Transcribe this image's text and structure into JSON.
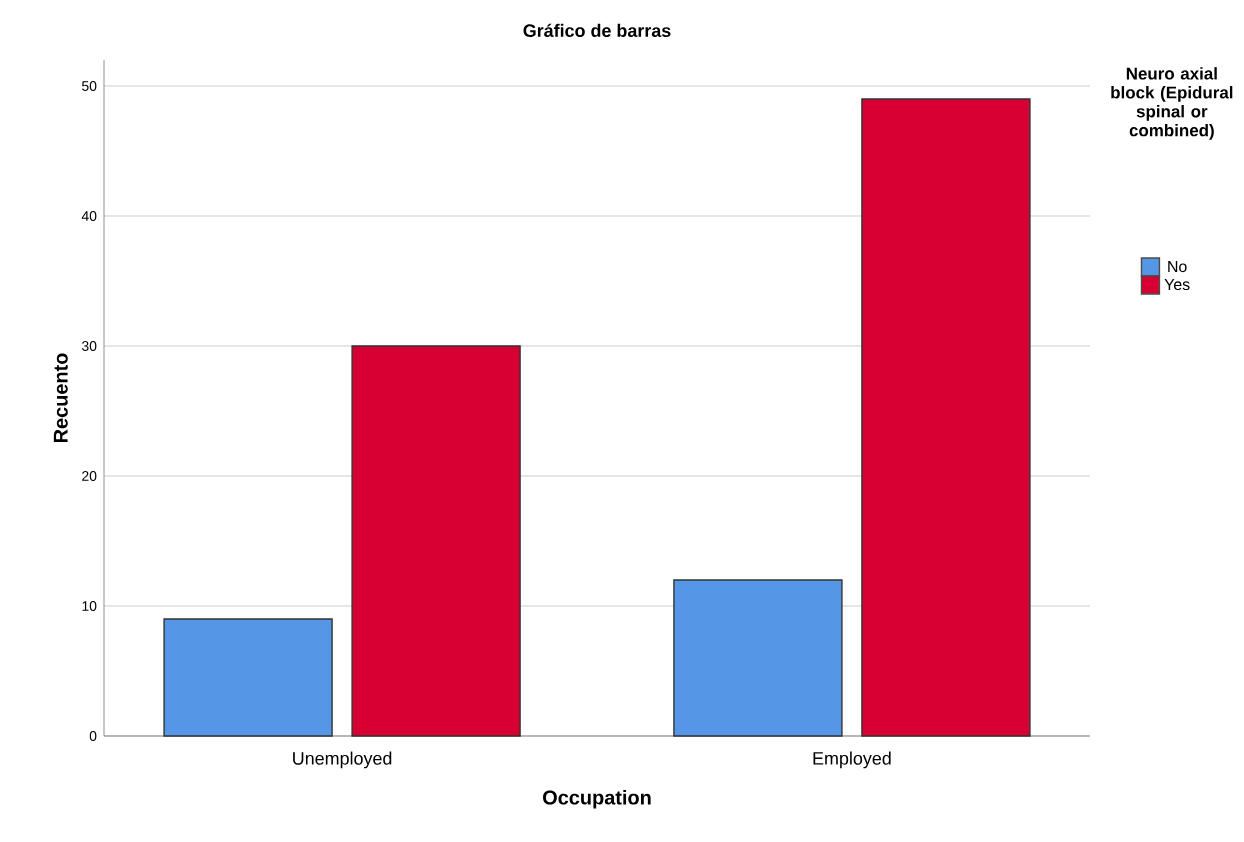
{
  "chart_data": {
    "type": "bar",
    "title": "Gráfico de barras",
    "xlabel": "Occupation",
    "ylabel": "Recuento",
    "legend_title": "Neuro axial block (Epidural spinal or combined)",
    "categories": [
      "Unemployed",
      "Employed"
    ],
    "series": [
      {
        "name": "No",
        "color": "#5596e6",
        "values": [
          9,
          12
        ]
      },
      {
        "name": "Yes",
        "color": "#d60032",
        "values": [
          30,
          49
        ]
      }
    ],
    "ylim": [
      0,
      52
    ],
    "yticks": [
      0,
      10,
      20,
      30,
      40,
      50
    ],
    "grid": "y",
    "legend": "right"
  }
}
